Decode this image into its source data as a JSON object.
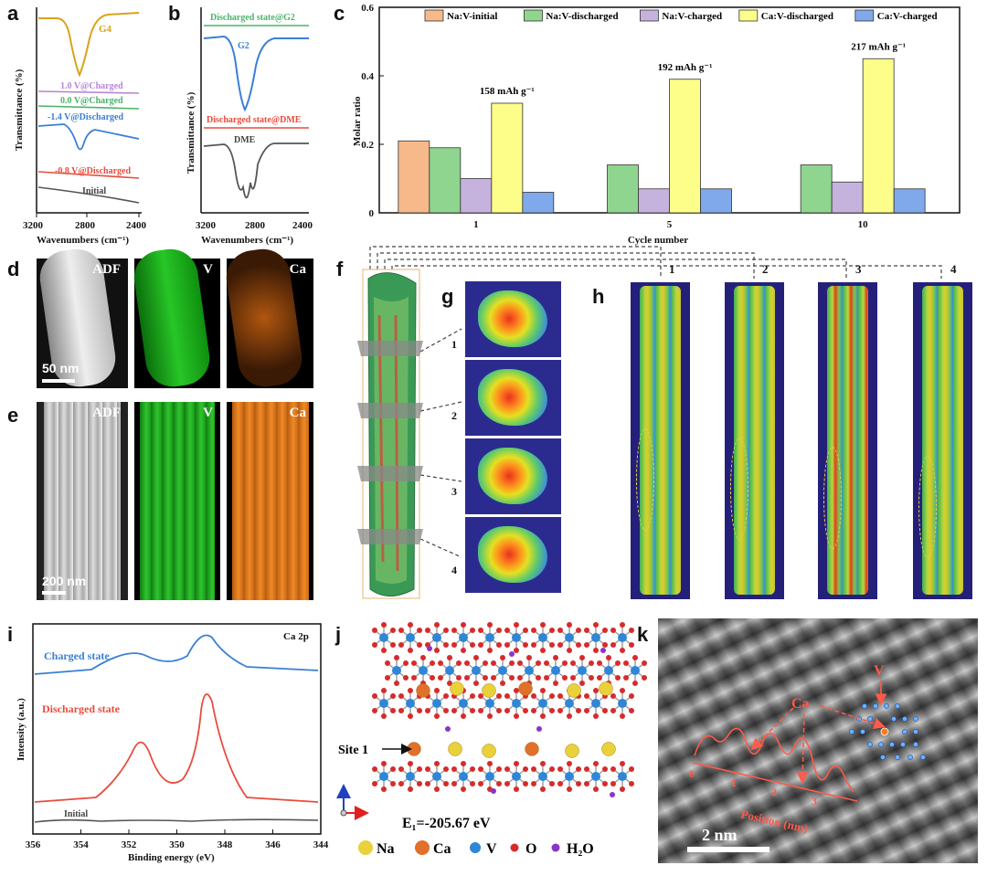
{
  "panels": {
    "a": {
      "label": "a",
      "ylabel": "Transmittance (%)",
      "xlabel": "Wavenumbers (cm⁻¹)",
      "xticks": [
        "3200",
        "2800",
        "2400"
      ],
      "curves": [
        {
          "name": "G4",
          "color": "#d9a21b"
        },
        {
          "name": "1.0 V@Charged",
          "color": "#b784d6"
        },
        {
          "name": "0.0 V@Charged",
          "color": "#4bb36a"
        },
        {
          "name": "-1.4 V@Discharged",
          "color": "#3a7fd5"
        },
        {
          "name": "-0.8 V@Discharged",
          "color": "#e84c3d"
        },
        {
          "name": "Initial",
          "color": "#555555"
        }
      ]
    },
    "b": {
      "label": "b",
      "ylabel": "Transmittance (%)",
      "xlabel": "Wavenumbers (cm⁻¹)",
      "xticks": [
        "3200",
        "2800",
        "2400"
      ],
      "curves": [
        {
          "name": "Discharged state@G2",
          "color": "#4bb36a"
        },
        {
          "name": "G2",
          "color": "#3a7fd5"
        },
        {
          "name": "Discharged state@DME",
          "color": "#e84c3d"
        },
        {
          "name": "DME",
          "color": "#555555"
        }
      ]
    },
    "d": {
      "label": "d",
      "channels": [
        "ADF",
        "V",
        "Ca"
      ],
      "scale": "50 nm"
    },
    "e": {
      "label": "e",
      "channels": [
        "ADF",
        "V",
        "Ca"
      ],
      "scale": "200 nm"
    },
    "f": {
      "label": "f"
    },
    "g": {
      "label": "g",
      "slices": [
        "1",
        "2",
        "3",
        "4"
      ]
    },
    "h": {
      "label": "h",
      "views": [
        "1",
        "2",
        "3",
        "4"
      ]
    },
    "i": {
      "label": "i",
      "title": "Ca 2p",
      "ylabel": "Intensity (a.u.)",
      "xlabel": "Binding energy (eV)",
      "xticks": [
        "356",
        "354",
        "352",
        "350",
        "348",
        "346",
        "344"
      ],
      "curves": [
        {
          "name": "Charged state",
          "color": "#3a7fd5"
        },
        {
          "name": "Discharged state",
          "color": "#e84c3d"
        },
        {
          "name": "Initial",
          "color": "#555555"
        }
      ]
    },
    "j": {
      "label": "j",
      "site": "Site 1",
      "energy": "E₁=-205.67 eV",
      "legend": [
        {
          "name": "Na",
          "color": "#e9d13a"
        },
        {
          "name": "Ca",
          "color": "#e0702a"
        },
        {
          "name": "V",
          "color": "#2e86d6"
        },
        {
          "name": "O",
          "color": "#d72b2b"
        },
        {
          "name": "H₂O",
          "color": "#8a35c9"
        }
      ]
    },
    "k": {
      "label": "k",
      "v_label": "V",
      "ca_label": "Ca",
      "axis": "Position (nm)",
      "axis_ticks": [
        "0",
        "1",
        "2",
        "3"
      ],
      "scale": "2 nm"
    }
  },
  "chart_data": {
    "type": "bar",
    "title": "",
    "xlabel": "Cycle number",
    "ylabel": "Molar ratio",
    "ylim": [
      0,
      0.6
    ],
    "yticks": [
      "0",
      "0.2",
      "0.4",
      "0.6"
    ],
    "categories": [
      "1",
      "5",
      "10"
    ],
    "series": [
      {
        "name": "Na:V-initial",
        "color": "#f7b98a",
        "values": [
          0.21,
          null,
          null
        ]
      },
      {
        "name": "Na:V-discharged",
        "color": "#8fd48f",
        "values": [
          0.19,
          0.14,
          0.14
        ]
      },
      {
        "name": "Na:V-charged",
        "color": "#c5b3dd",
        "values": [
          0.1,
          0.07,
          0.09
        ]
      },
      {
        "name": "Ca:V-discharged",
        "color": "#fdfd8a",
        "values": [
          0.32,
          0.39,
          0.45
        ]
      },
      {
        "name": "Ca:V-charged",
        "color": "#7fa9ea",
        "values": [
          0.06,
          0.07,
          0.07
        ]
      }
    ],
    "annotations": [
      "158 mAh g⁻¹",
      "192 mAh g⁻¹",
      "217 mAh g⁻¹"
    ]
  }
}
